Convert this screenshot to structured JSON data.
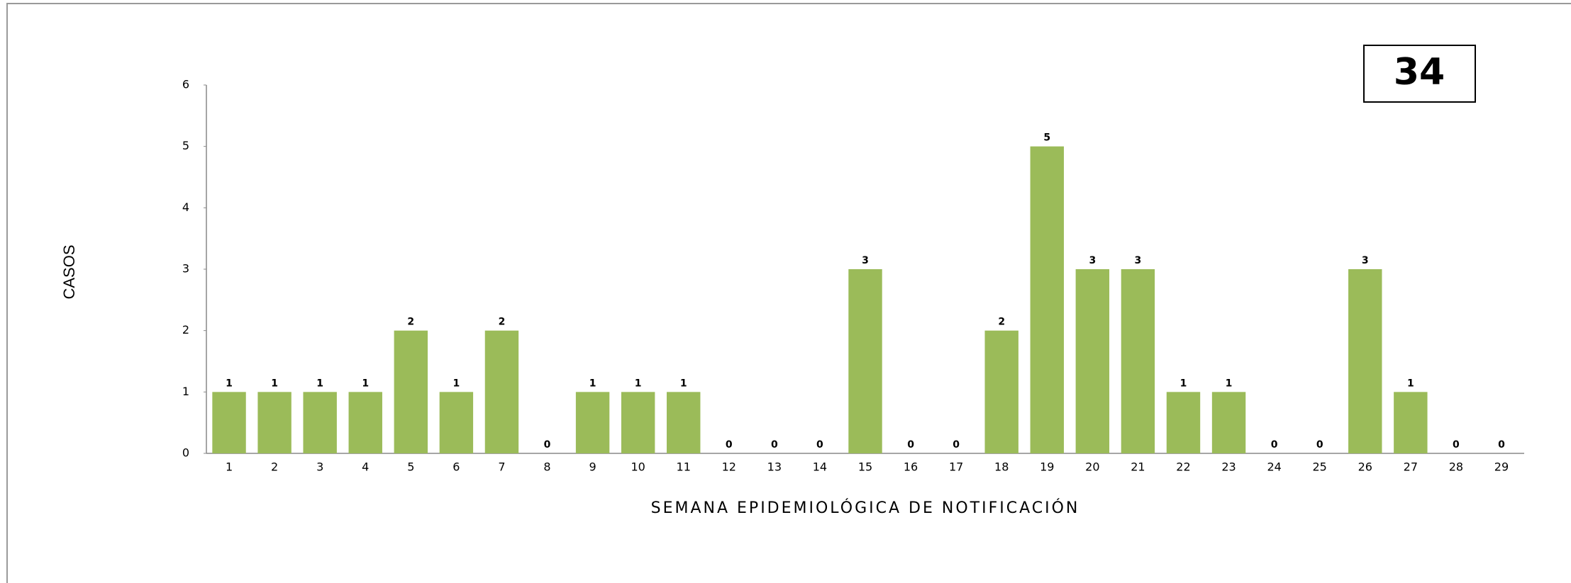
{
  "chart_data": {
    "type": "bar",
    "categories": [
      "1",
      "2",
      "3",
      "4",
      "5",
      "6",
      "7",
      "8",
      "9",
      "10",
      "11",
      "12",
      "13",
      "14",
      "15",
      "16",
      "17",
      "18",
      "19",
      "20",
      "21",
      "22",
      "23",
      "24",
      "25",
      "26",
      "27",
      "28",
      "29"
    ],
    "values": [
      1,
      1,
      1,
      1,
      2,
      1,
      2,
      0,
      1,
      1,
      1,
      0,
      0,
      0,
      3,
      0,
      0,
      2,
      5,
      3,
      3,
      1,
      1,
      0,
      0,
      3,
      1,
      0,
      0
    ],
    "color": "#9bbb59",
    "ylim": [
      0,
      6
    ],
    "yticks": [
      0,
      1,
      2,
      3,
      4,
      5,
      6
    ],
    "ylabel": "CASOS",
    "xlabel": "SEMANA EPIDEMIOLÓGICA DE NOTIFICACIÓN",
    "annotation": "34"
  }
}
